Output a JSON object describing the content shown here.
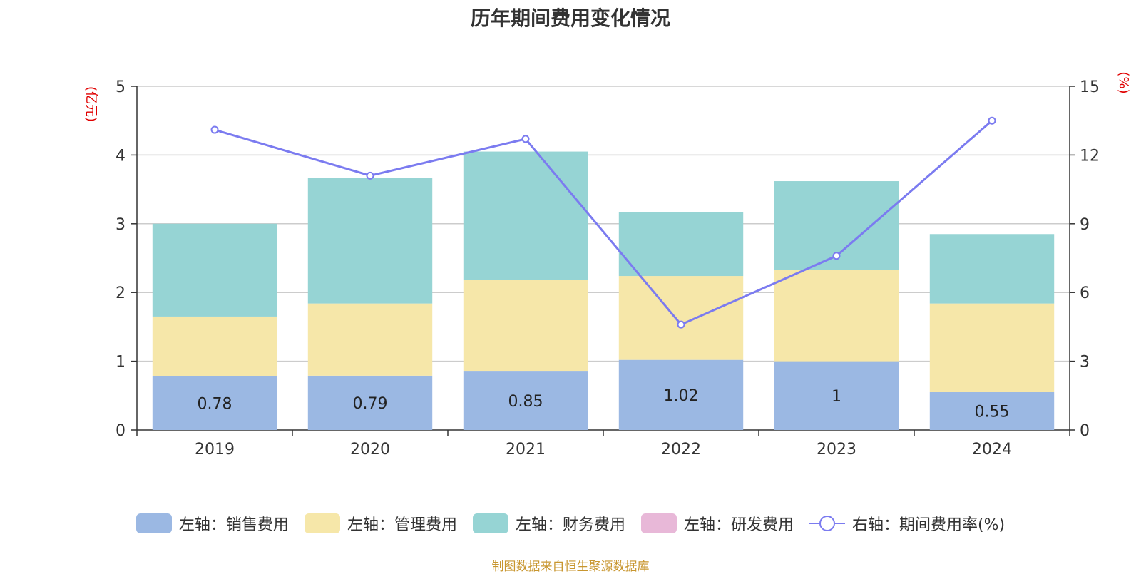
{
  "chart_data": {
    "type": "bar",
    "title": "历年期间费用变化情况",
    "categories": [
      "2019",
      "2020",
      "2021",
      "2022",
      "2023",
      "2024"
    ],
    "series": [
      {
        "name": "左轴：销售费用",
        "axis": "left",
        "color": "#9bb8e3",
        "values": [
          0.78,
          0.79,
          0.85,
          1.02,
          1.0,
          0.55
        ],
        "labels": [
          "0.78",
          "0.79",
          "0.85",
          "1.02",
          "1",
          "0.55"
        ]
      },
      {
        "name": "左轴：管理费用",
        "axis": "left",
        "color": "#f6e7a9",
        "values": [
          0.87,
          1.05,
          1.33,
          1.22,
          1.33,
          1.29
        ]
      },
      {
        "name": "左轴：财务费用",
        "axis": "left",
        "color": "#96d4d4",
        "values": [
          1.35,
          1.83,
          1.87,
          0.93,
          1.29,
          1.01
        ]
      },
      {
        "name": "左轴：研发费用",
        "axis": "left",
        "color": "#e8b8d8",
        "values": [
          0,
          0,
          0,
          0,
          0,
          0
        ]
      },
      {
        "name": "右轴：期间费用率(%)",
        "axis": "right",
        "type": "line",
        "color": "#7b7bf0",
        "values": [
          13.1,
          11.1,
          12.7,
          4.6,
          7.6,
          13.5
        ]
      }
    ],
    "left_axis": {
      "label": "(亿元)",
      "ylim": [
        0,
        5
      ],
      "ticks": [
        "0",
        "1",
        "2",
        "3",
        "4",
        "5"
      ]
    },
    "right_axis": {
      "label": "(%)",
      "ylim": [
        0,
        15
      ],
      "ticks": [
        "0",
        "3",
        "6",
        "9",
        "12",
        "15"
      ]
    },
    "legend_position": "bottom",
    "grid": true
  },
  "source_text": "制图数据来自恒生聚源数据库"
}
